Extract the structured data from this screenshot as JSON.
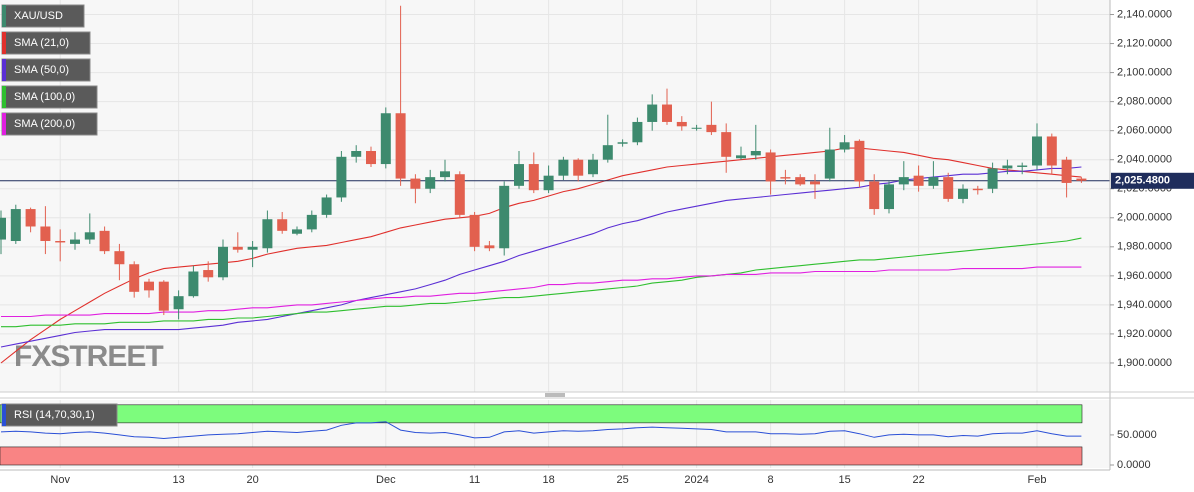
{
  "chart_data": [
    {
      "type": "candlestick",
      "symbol": "XAU/USD",
      "watermark": "FXSTREET",
      "categories": [
        null,
        null,
        null,
        null,
        "Nov",
        null,
        null,
        null,
        null,
        null,
        null,
        null,
        "13",
        null,
        null,
        null,
        null,
        "20",
        null,
        null,
        null,
        null,
        null,
        null,
        null,
        null,
        "Dec",
        null,
        null,
        null,
        null,
        null,
        "11",
        null,
        null,
        null,
        null,
        "18",
        null,
        null,
        null,
        null,
        "25",
        null,
        null,
        null,
        null,
        "2024",
        null,
        null,
        null,
        null,
        "8",
        null,
        null,
        null,
        null,
        "15",
        null,
        null,
        null,
        null,
        "22",
        null,
        null,
        null,
        null,
        null,
        null,
        null,
        "Feb",
        null,
        null,
        null
      ],
      "open": [
        1985,
        1984,
        2006,
        1994,
        1984,
        1982,
        1985,
        1991,
        1977,
        1968,
        1956,
        1956,
        1937,
        1946,
        1964,
        1959,
        1980,
        1978,
        1979,
        1999,
        1989,
        1992,
        2002,
        2014,
        2042,
        2046,
        2037,
        2072,
        2027,
        2020,
        2028,
        2030,
        2002,
        1981,
        1979,
        2022,
        2037,
        2019,
        2029,
        2040,
        2030,
        2040,
        2051,
        2052,
        2066,
        2078,
        2066,
        2062,
        2064,
        2059,
        2041,
        2043,
        2045,
        2028,
        2028,
        2025,
        2027,
        2047,
        2053,
        2025,
        2006,
        2023,
        2029,
        2022,
        2028,
        2013,
        2020,
        2020,
        2034,
        2035,
        2036,
        2056,
        2040,
        2027
      ],
      "high": [
        2005,
        2009,
        2007,
        2008,
        1992,
        1990,
        2003,
        1994,
        1982,
        1970,
        1958,
        1957,
        1950,
        1967,
        1970,
        1985,
        1990,
        1984,
        2005,
        2004,
        1994,
        2005,
        2016,
        2046,
        2050,
        2049,
        2076,
        2146,
        2030,
        2033,
        2040,
        2032,
        2004,
        1984,
        2025,
        2046,
        2045,
        2036,
        2042,
        2041,
        2044,
        2071,
        2054,
        2069,
        2085,
        2089,
        2070,
        2064,
        2080,
        2065,
        2049,
        2064,
        2047,
        2033,
        2030,
        2030,
        2062,
        2057,
        2054,
        2030,
        2025,
        2039,
        2036,
        2039,
        2031,
        2023,
        2022,
        2038,
        2040,
        2038,
        2065,
        2058,
        2042,
        2028
      ],
      "low": [
        1975,
        1982,
        1990,
        1975,
        1970,
        1978,
        1982,
        1975,
        1957,
        1945,
        1945,
        1933,
        1930,
        1945,
        1956,
        1957,
        1976,
        1966,
        1976,
        1989,
        1988,
        1990,
        2000,
        2011,
        2038,
        2035,
        2034,
        2022,
        2010,
        2017,
        2025,
        2000,
        1977,
        1977,
        1974,
        2020,
        2017,
        2017,
        2026,
        2025,
        2028,
        2038,
        2049,
        2050,
        2060,
        2064,
        2060,
        2060,
        2057,
        2031,
        2040,
        2040,
        2016,
        2023,
        2022,
        2013,
        2025,
        2045,
        2021,
        2002,
        2003,
        2019,
        2018,
        2020,
        2011,
        2010,
        2016,
        2017,
        2030,
        2030,
        2033,
        2030,
        2014,
        2024
      ],
      "close": [
        2000,
        2006,
        1994,
        1984,
        1983,
        1985,
        1990,
        1977,
        1968,
        1949,
        1950,
        1936,
        1946,
        1963,
        1959,
        1980,
        1978,
        1980,
        1999,
        1991,
        1992,
        2002,
        2014,
        2042,
        2046,
        2037,
        2072,
        2027,
        2020,
        2028,
        2032,
        2002,
        1980,
        1979,
        2022,
        2037,
        2019,
        2029,
        2040,
        2029,
        2040,
        2050,
        2052,
        2066,
        2078,
        2066,
        2063,
        2062,
        2059,
        2042,
        2043,
        2046,
        2025,
        2027,
        2023,
        2023,
        2047,
        2052,
        2025,
        2006,
        2023,
        2028,
        2022,
        2028,
        2013,
        2020,
        2019,
        2034,
        2036,
        2036,
        2056,
        2036,
        2024,
        2025.48
      ],
      "up_color": "#3d8a6e",
      "down_color": "#e2604f",
      "last_price_label": "2,025.4800",
      "series": [
        {
          "name": "SMA (21,0)",
          "color": "#e0302c",
          "values": [
            1900,
            1908,
            1916,
            1923,
            1930,
            1936,
            1942,
            1948,
            1953,
            1958,
            1962,
            1965,
            1966,
            1967,
            1968,
            1969,
            1970,
            1972,
            1975,
            1977,
            1979,
            1980,
            1981,
            1983,
            1985,
            1987,
            1990,
            1993,
            1995,
            1997,
            1999,
            2000,
            2001,
            2003,
            2007,
            2010,
            2012,
            2015,
            2018,
            2020,
            2023,
            2026,
            2029,
            2031,
            2033,
            2035,
            2036,
            2037,
            2038,
            2039,
            2040,
            2041,
            2042,
            2043,
            2044,
            2045,
            2046,
            2048,
            2048,
            2047,
            2046,
            2045,
            2043,
            2041,
            2040,
            2038,
            2036,
            2034,
            2033,
            2032,
            2031,
            2030,
            2029,
            2028
          ]
        },
        {
          "name": "SMA (50,0)",
          "color": "#5b2fd4",
          "values": [
            1911,
            1913,
            1915,
            1917,
            1919,
            1921,
            1922,
            1923,
            1923,
            1923,
            1923,
            1923,
            1923,
            1924,
            1925,
            1926,
            1928,
            1929,
            1930,
            1932,
            1934,
            1936,
            1938,
            1940,
            1943,
            1945,
            1947,
            1949,
            1951,
            1954,
            1957,
            1961,
            1964,
            1967,
            1970,
            1974,
            1977,
            1980,
            1983,
            1986,
            1989,
            1993,
            1996,
            1998,
            2001,
            2004,
            2006,
            2008,
            2010,
            2012,
            2013,
            2014,
            2015,
            2016,
            2017,
            2018,
            2019,
            2020,
            2021,
            2023,
            2024,
            2026,
            2027,
            2028,
            2029,
            2030,
            2030,
            2031,
            2032,
            2032,
            2033,
            2034,
            2034,
            2035
          ]
        },
        {
          "name": "SMA (100,0)",
          "color": "#2fbf2f",
          "values": [
            1925,
            1925,
            1926,
            1926,
            1926,
            1927,
            1927,
            1927,
            1928,
            1928,
            1928,
            1929,
            1929,
            1929,
            1930,
            1930,
            1931,
            1931,
            1932,
            1933,
            1934,
            1935,
            1935,
            1936,
            1937,
            1938,
            1939,
            1939,
            1940,
            1941,
            1941,
            1942,
            1943,
            1944,
            1945,
            1945,
            1946,
            1947,
            1948,
            1949,
            1950,
            1951,
            1952,
            1953,
            1955,
            1956,
            1957,
            1959,
            1960,
            1961,
            1962,
            1964,
            1965,
            1966,
            1967,
            1968,
            1969,
            1970,
            1971,
            1971,
            1972,
            1973,
            1974,
            1975,
            1976,
            1977,
            1978,
            1979,
            1980,
            1981,
            1982,
            1983,
            1984,
            1986
          ]
        },
        {
          "name": "SMA (200,0)",
          "color": "#e020e0",
          "values": [
            1932,
            1932,
            1932,
            1933,
            1933,
            1933,
            1933,
            1934,
            1934,
            1934,
            1934,
            1935,
            1935,
            1935,
            1936,
            1936,
            1937,
            1938,
            1938,
            1939,
            1940,
            1940,
            1941,
            1942,
            1943,
            1944,
            1945,
            1945,
            1946,
            1946,
            1947,
            1948,
            1948,
            1949,
            1950,
            1951,
            1952,
            1954,
            1954,
            1955,
            1955,
            1956,
            1957,
            1957,
            1958,
            1958,
            1959,
            1960,
            1960,
            1961,
            1961,
            1961,
            1962,
            1962,
            1962,
            1963,
            1963,
            1963,
            1963,
            1963,
            1964,
            1964,
            1964,
            1964,
            1964,
            1965,
            1965,
            1965,
            1965,
            1965,
            1966,
            1966,
            1966,
            1966
          ]
        }
      ],
      "ylim": [
        1880,
        2150
      ],
      "yticks": [
        {
          "value": 1900,
          "label": "1,900.0000"
        },
        {
          "value": 1920,
          "label": "1,920.0000"
        },
        {
          "value": 1940,
          "label": "1,940.0000"
        },
        {
          "value": 1960,
          "label": "1,960.0000"
        },
        {
          "value": 1980,
          "label": "1,980.0000"
        },
        {
          "value": 2000,
          "label": "2,000.0000"
        },
        {
          "value": 2020,
          "label": "2,020.0000"
        },
        {
          "value": 2040,
          "label": "2,040.0000"
        },
        {
          "value": 2060,
          "label": "2,060.0000"
        },
        {
          "value": 2080,
          "label": "2,080.0000"
        },
        {
          "value": 2100,
          "label": "2,100.0000"
        },
        {
          "value": 2120,
          "label": "2,120.0000"
        },
        {
          "value": 2140,
          "label": "2,140.0000"
        }
      ],
      "grid": true
    },
    {
      "type": "line",
      "name": "RSI (14,70,30,1)",
      "color": "#2a4fd6",
      "overbought": 70,
      "oversold": 30,
      "band_top": 100,
      "band_bottom": 0,
      "values": [
        55,
        56,
        55,
        53,
        52,
        54,
        55,
        53,
        50,
        47,
        46,
        44,
        46,
        48,
        50,
        51,
        52,
        54,
        56,
        55,
        54,
        56,
        58,
        66,
        70,
        70,
        72,
        58,
        54,
        53,
        54,
        50,
        45,
        46,
        55,
        57,
        53,
        55,
        57,
        56,
        57,
        59,
        60,
        62,
        63,
        62,
        61,
        60,
        59,
        55,
        55,
        55,
        52,
        52,
        51,
        52,
        56,
        57,
        52,
        46,
        50,
        51,
        50,
        50,
        47,
        49,
        48,
        52,
        53,
        53,
        57,
        52,
        48,
        48
      ],
      "ylim": [
        -5,
        108
      ],
      "yticks": [
        {
          "value": 0,
          "label": "0.0000"
        },
        {
          "value": 50,
          "label": "50.0000"
        }
      ]
    }
  ]
}
